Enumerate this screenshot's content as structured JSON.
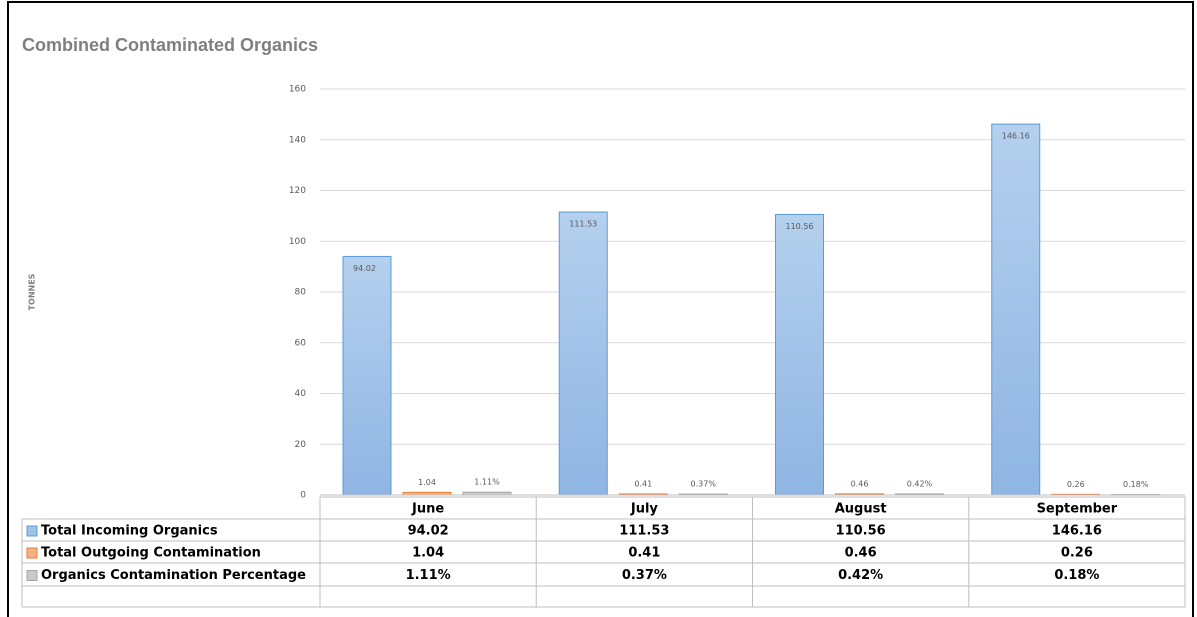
{
  "chart_data": {
    "type": "bar",
    "title": "Combined Contaminated Organics",
    "y_label": "TONNES",
    "categories": [
      "June",
      "July",
      "August",
      "September"
    ],
    "series": [
      {
        "name": "Total Incoming Organics",
        "color": "#9dc3e6",
        "border": "#5b9bd5",
        "values": [
          94.02,
          111.53,
          110.56,
          146.16
        ]
      },
      {
        "name": "Total Outgoing Contamination",
        "color": "#f4b183",
        "border": "#ed7d31",
        "values": [
          1.04,
          0.41,
          0.46,
          0.26
        ]
      },
      {
        "name": "Organics Contamination Percentage",
        "color": "#c9c9c9",
        "border": "#a5a5a5",
        "values": [
          1.11,
          0.37,
          0.42,
          0.18
        ],
        "value_labels": [
          "1.11%",
          "0.37%",
          "0.42%",
          "0.18%"
        ]
      }
    ],
    "ylim": [
      0,
      160
    ],
    "yticks": [
      0,
      20,
      40,
      60,
      80,
      100,
      120,
      140,
      160
    ],
    "grid": true
  }
}
